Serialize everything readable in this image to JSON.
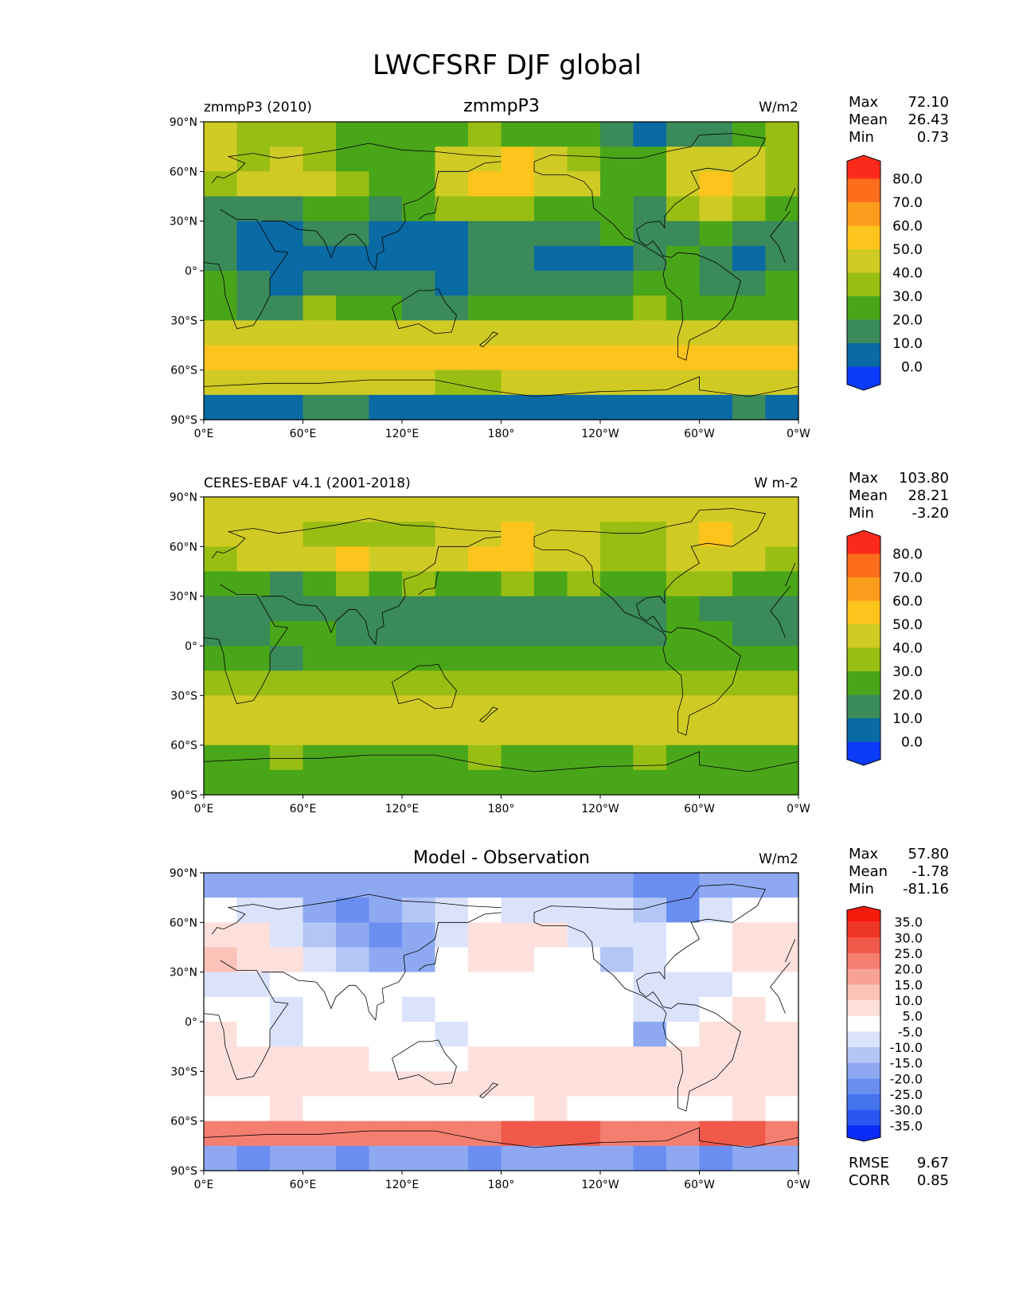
{
  "figure": {
    "title": "LWCFSRF DJF global"
  },
  "axis_ticks": {
    "lat": [
      "90°N",
      "60°N",
      "30°N",
      "0°",
      "30°S",
      "60°S",
      "90°S"
    ],
    "lon": [
      "0°E",
      "60°E",
      "120°E",
      "180°",
      "120°W",
      "60°W",
      "0°W"
    ]
  },
  "colors": {
    "seq": [
      "#0a3cfa",
      "#0a6aa3",
      "#3a8a5a",
      "#4aa619",
      "#98be14",
      "#cfcb24",
      "#fcc41c",
      "#fc9c1c",
      "#fc6e1c",
      "#fc2a1c"
    ],
    "diff": [
      "#0a2cf6",
      "#2a56f0",
      "#4573ee",
      "#6a8ff0",
      "#8ea9f2",
      "#b4c6f6",
      "#dae3fb",
      "#ffffff",
      "#fde0db",
      "#fbc2b8",
      "#f8a295",
      "#f47f70",
      "#f0594a",
      "#ee3626",
      "#f41a0c"
    ]
  },
  "chart_data": [
    {
      "type": "heatmap",
      "left_label": "zmmpP3 (2010)",
      "title": "zmmpP3",
      "units": "W/m2",
      "stats": {
        "max_label": "Max",
        "max": "72.10",
        "mean_label": "Mean",
        "mean": "26.43",
        "min_label": "Min",
        "min": "0.73"
      },
      "colorbar": {
        "levels": [
          "80.0",
          "70.0",
          "60.0",
          "50.0",
          "40.0",
          "30.0",
          "20.0",
          "10.0",
          "0.0"
        ],
        "extend": "both"
      },
      "field": [
        [
          5,
          4,
          4,
          4,
          3,
          3,
          3,
          3,
          4,
          3,
          3,
          3,
          2,
          1,
          2,
          2,
          3,
          4
        ],
        [
          5,
          4,
          5,
          4,
          3,
          3,
          3,
          5,
          5,
          6,
          5,
          4,
          3,
          3,
          5,
          5,
          5,
          4
        ],
        [
          4,
          5,
          5,
          5,
          4,
          3,
          3,
          5,
          6,
          6,
          5,
          5,
          3,
          3,
          5,
          6,
          5,
          4
        ],
        [
          2,
          2,
          2,
          3,
          3,
          2,
          3,
          4,
          4,
          4,
          3,
          3,
          3,
          2,
          4,
          5,
          4,
          3
        ],
        [
          2,
          1,
          1,
          2,
          2,
          1,
          1,
          1,
          2,
          2,
          2,
          2,
          3,
          2,
          2,
          3,
          2,
          2
        ],
        [
          2,
          1,
          1,
          1,
          1,
          1,
          1,
          1,
          2,
          2,
          1,
          1,
          1,
          2,
          3,
          2,
          1,
          2
        ],
        [
          3,
          2,
          1,
          2,
          2,
          2,
          2,
          1,
          2,
          2,
          2,
          2,
          2,
          3,
          3,
          2,
          2,
          3
        ],
        [
          3,
          2,
          2,
          4,
          3,
          3,
          2,
          2,
          3,
          3,
          3,
          3,
          3,
          4,
          3,
          3,
          3,
          3
        ],
        [
          5,
          5,
          5,
          5,
          5,
          5,
          5,
          5,
          5,
          5,
          5,
          5,
          5,
          5,
          5,
          5,
          5,
          5
        ],
        [
          6,
          6,
          6,
          6,
          6,
          6,
          6,
          6,
          6,
          6,
          6,
          6,
          6,
          6,
          6,
          6,
          6,
          6
        ],
        [
          5,
          5,
          5,
          5,
          5,
          5,
          5,
          4,
          4,
          5,
          5,
          5,
          5,
          5,
          5,
          5,
          5,
          5
        ],
        [
          1,
          1,
          1,
          2,
          2,
          1,
          1,
          1,
          1,
          1,
          1,
          1,
          1,
          1,
          1,
          1,
          2,
          1
        ]
      ]
    },
    {
      "type": "heatmap",
      "left_label": "CERES-EBAF v4.1 (2001-2018)",
      "title": "",
      "units": "W m-2",
      "stats": {
        "max_label": "Max",
        "max": "103.80",
        "mean_label": "Mean",
        "mean": "28.21",
        "min_label": "Min",
        "min": "-3.20"
      },
      "colorbar": {
        "levels": [
          "80.0",
          "70.0",
          "60.0",
          "50.0",
          "40.0",
          "30.0",
          "20.0",
          "10.0",
          "0.0"
        ],
        "extend": "both"
      },
      "field": [
        [
          5,
          5,
          5,
          5,
          5,
          5,
          5,
          5,
          5,
          5,
          5,
          5,
          5,
          5,
          5,
          5,
          5,
          5
        ],
        [
          5,
          5,
          5,
          4,
          4,
          4,
          4,
          5,
          5,
          6,
          5,
          5,
          4,
          4,
          5,
          6,
          5,
          5
        ],
        [
          4,
          5,
          5,
          5,
          6,
          5,
          5,
          5,
          6,
          6,
          5,
          5,
          4,
          4,
          5,
          5,
          5,
          4
        ],
        [
          3,
          3,
          2,
          3,
          4,
          3,
          4,
          3,
          3,
          4,
          3,
          4,
          3,
          3,
          4,
          4,
          3,
          3
        ],
        [
          2,
          2,
          2,
          2,
          2,
          2,
          2,
          2,
          2,
          2,
          2,
          2,
          2,
          2,
          3,
          2,
          2,
          2
        ],
        [
          2,
          2,
          3,
          3,
          2,
          2,
          2,
          2,
          2,
          2,
          2,
          2,
          2,
          2,
          3,
          3,
          2,
          2
        ],
        [
          3,
          3,
          2,
          3,
          3,
          3,
          3,
          3,
          3,
          3,
          3,
          3,
          3,
          3,
          3,
          3,
          3,
          3
        ],
        [
          4,
          4,
          4,
          4,
          4,
          4,
          4,
          4,
          4,
          4,
          4,
          4,
          4,
          4,
          4,
          4,
          4,
          4
        ],
        [
          5,
          5,
          5,
          5,
          5,
          5,
          5,
          5,
          5,
          5,
          5,
          5,
          5,
          5,
          5,
          5,
          5,
          5
        ],
        [
          5,
          5,
          5,
          5,
          5,
          5,
          5,
          5,
          5,
          5,
          5,
          5,
          5,
          5,
          5,
          5,
          5,
          5
        ],
        [
          3,
          3,
          4,
          3,
          3,
          3,
          3,
          3,
          4,
          3,
          3,
          3,
          3,
          4,
          3,
          3,
          3,
          3
        ],
        [
          3,
          3,
          3,
          3,
          3,
          3,
          3,
          3,
          3,
          3,
          3,
          3,
          3,
          3,
          3,
          3,
          3,
          3
        ]
      ]
    },
    {
      "type": "heatmap",
      "left_label": "",
      "title": "Model - Observation",
      "units": "W/m2",
      "stats": {
        "max_label": "Max",
        "max": "57.80",
        "mean_label": "Mean",
        "mean": "-1.78",
        "min_label": "Min",
        "min": "-81.16"
      },
      "colorbar": {
        "levels": [
          "35.0",
          "30.0",
          "25.0",
          "20.0",
          "15.0",
          "10.0",
          "5.0",
          "-5.0",
          "-10.0",
          "-15.0",
          "-20.0",
          "-25.0",
          "-30.0",
          "-35.0"
        ],
        "extend": "both"
      },
      "extra": {
        "rmse_label": "RMSE",
        "rmse": "9.67",
        "corr_label": "CORR",
        "corr": "0.85"
      },
      "field": [
        [
          4,
          4,
          4,
          4,
          4,
          4,
          4,
          4,
          4,
          4,
          4,
          4,
          4,
          3,
          3,
          4,
          4,
          4
        ],
        [
          7,
          6,
          6,
          4,
          3,
          4,
          5,
          6,
          7,
          6,
          6,
          6,
          6,
          5,
          3,
          6,
          7,
          7
        ],
        [
          8,
          8,
          6,
          5,
          4,
          3,
          4,
          6,
          8,
          8,
          8,
          6,
          6,
          6,
          7,
          7,
          8,
          8
        ],
        [
          9,
          8,
          8,
          6,
          5,
          4,
          4,
          7,
          8,
          8,
          7,
          7,
          5,
          6,
          7,
          7,
          8,
          8
        ],
        [
          6,
          6,
          7,
          7,
          7,
          7,
          7,
          7,
          7,
          7,
          7,
          7,
          7,
          6,
          6,
          6,
          7,
          7
        ],
        [
          7,
          7,
          6,
          7,
          7,
          7,
          6,
          7,
          7,
          7,
          7,
          7,
          7,
          6,
          6,
          7,
          8,
          7
        ],
        [
          8,
          7,
          6,
          7,
          7,
          7,
          7,
          6,
          7,
          7,
          7,
          7,
          7,
          4,
          7,
          8,
          8,
          8
        ],
        [
          8,
          8,
          8,
          8,
          8,
          7,
          7,
          7,
          8,
          8,
          8,
          8,
          8,
          8,
          8,
          8,
          8,
          8
        ],
        [
          8,
          8,
          8,
          8,
          8,
          8,
          8,
          8,
          8,
          8,
          8,
          8,
          8,
          8,
          8,
          8,
          8,
          8
        ],
        [
          7,
          7,
          8,
          7,
          7,
          7,
          7,
          7,
          7,
          7,
          8,
          7,
          7,
          7,
          7,
          7,
          8,
          7
        ],
        [
          11,
          11,
          11,
          11,
          11,
          11,
          11,
          11,
          11,
          12,
          12,
          12,
          11,
          11,
          11,
          12,
          12,
          11
        ],
        [
          4,
          3,
          4,
          4,
          3,
          4,
          4,
          4,
          3,
          4,
          4,
          4,
          4,
          3,
          4,
          3,
          4,
          4
        ]
      ]
    }
  ]
}
